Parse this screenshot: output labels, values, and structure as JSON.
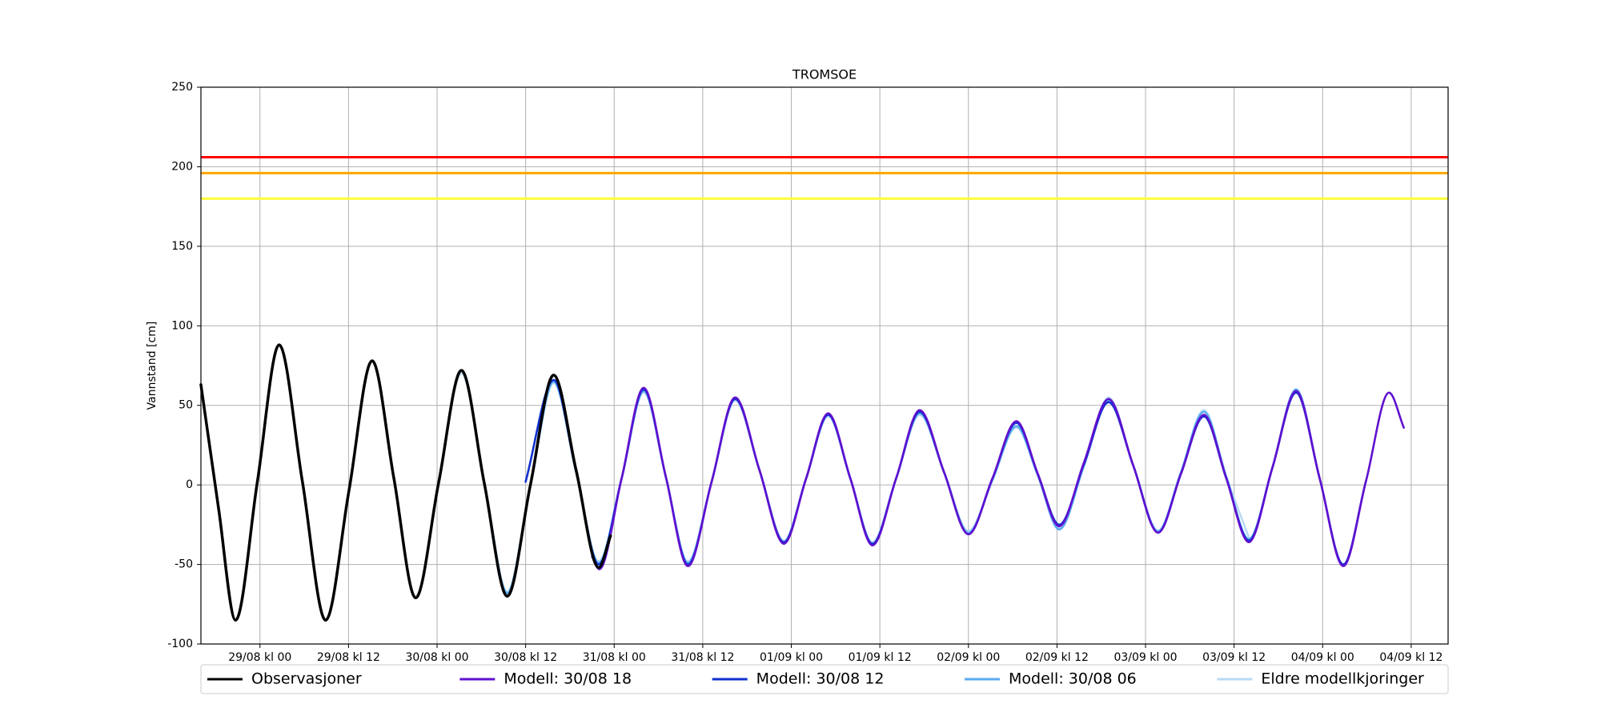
{
  "chart_data": {
    "type": "line",
    "title": "TROMSOE",
    "y_label": "Vannstand [cm]",
    "xlim": [
      -8,
      161
    ],
    "xticks": [
      {
        "value": 0,
        "label": "29/08 kl 00"
      },
      {
        "value": 12,
        "label": "29/08 kl 12"
      },
      {
        "value": 24,
        "label": "30/08 kl 00"
      },
      {
        "value": 36,
        "label": "30/08 kl 12"
      },
      {
        "value": 48,
        "label": "31/08 kl 00"
      },
      {
        "value": 60,
        "label": "31/08 kl 12"
      },
      {
        "value": 72,
        "label": "01/09 kl 00"
      },
      {
        "value": 84,
        "label": "01/09 kl 12"
      },
      {
        "value": 96,
        "label": "02/09 kl 00"
      },
      {
        "value": 108,
        "label": "02/09 kl 12"
      },
      {
        "value": 120,
        "label": "03/09 kl 00"
      },
      {
        "value": 132,
        "label": "03/09 kl 12"
      },
      {
        "value": 144,
        "label": "04/09 kl 00"
      },
      {
        "value": 156,
        "label": "04/09 kl 12"
      }
    ],
    "ylim": [
      -100,
      250
    ],
    "yticks": [
      -100,
      -50,
      0,
      50,
      100,
      150,
      200,
      250
    ],
    "grid": true,
    "legend": "bottom",
    "thresholds": [
      {
        "value": 206,
        "color": "#ff0000"
      },
      {
        "value": 196,
        "color": "#ffa500"
      },
      {
        "value": 180,
        "color": "#ffff33"
      }
    ],
    "series": [
      {
        "name": "Observasjoner",
        "color": "#000000",
        "x": [
          -8,
          -5.6,
          -3.3,
          -0.35,
          2.6,
          5.75,
          8.9,
          12.05,
          15.2,
          18.15,
          21.1,
          24.2,
          27.3,
          30.4,
          33.5,
          36.65,
          39.8,
          42.85,
          45.9,
          47.5
        ],
        "values": [
          63,
          -15,
          -85,
          2,
          88,
          2,
          -85,
          -4,
          78,
          4,
          -71,
          1,
          72,
          1,
          -70,
          0,
          69,
          9,
          -52,
          -32
        ]
      },
      {
        "name": "Modell: 30/08 18",
        "color": "#6010d0",
        "x": [
          45,
          46,
          49,
          52,
          55,
          58,
          61.2,
          64.4,
          67.7,
          71,
          74,
          77,
          80,
          83,
          86.2,
          89.4,
          92.7,
          96,
          99.25,
          102.5,
          105.4,
          108.3,
          111.65,
          115,
          118.35,
          121.7,
          124.8,
          127.9,
          130.95,
          134,
          137.2,
          140.4,
          143.6,
          146.8,
          149.9,
          153,
          155
        ],
        "values": [
          -45,
          -53,
          4,
          61,
          5,
          -51,
          2,
          55,
          9,
          -37,
          4,
          45,
          4,
          -38,
          4,
          47,
          8,
          -31,
          4,
          40,
          7,
          -26,
          14,
          54,
          12,
          -30,
          7,
          44,
          4,
          -36,
          11,
          59,
          4,
          -51,
          3,
          58,
          36
        ]
      },
      {
        "name": "Modell: 30/08 12",
        "color": "#1030d0",
        "x": [
          36,
          39.8,
          42.85,
          45.9,
          49,
          52,
          55,
          58,
          61.2,
          64.4,
          67.7,
          71,
          74,
          77,
          80,
          83,
          86.2,
          89.4,
          92.7,
          96,
          99.25,
          102.5,
          105.4,
          108.3,
          111.65,
          115,
          118.35,
          121.7,
          124.8,
          127.9,
          130.95,
          134,
          137.2,
          140.4,
          143.6,
          146.8,
          149.9
        ],
        "values": [
          2,
          66,
          8,
          -50,
          4,
          60,
          5,
          -50,
          2,
          54,
          9,
          -36,
          4,
          44,
          4,
          -37,
          4,
          46,
          8,
          -31,
          4,
          39,
          7,
          -25,
          13,
          52,
          12,
          -30,
          7,
          43,
          4,
          -35,
          11,
          58,
          4,
          -50,
          3
        ]
      },
      {
        "name": "Modell: 30/08 06",
        "color": "#5aaaf0",
        "x": [
          30.4,
          33.5,
          36.65,
          39.8,
          42.85,
          45.9,
          49,
          52,
          55,
          58,
          61.2,
          64.4,
          67.7,
          71,
          74,
          77,
          80,
          83,
          86.2,
          89.4,
          92.7,
          96,
          99.25,
          102.5,
          105.4,
          108.3,
          111.65,
          115,
          118.35,
          121.7,
          124.8,
          127.9,
          130.95,
          134,
          137.2,
          140.4,
          143.6
        ],
        "values": [
          2,
          -68,
          0,
          65,
          8,
          -49,
          4,
          59,
          5,
          -49,
          2,
          54,
          9,
          -36,
          4,
          44,
          4,
          -37,
          4,
          45,
          8,
          -30,
          3,
          37,
          6,
          -28,
          12,
          53,
          12,
          -29,
          8,
          46,
          5,
          -34,
          11,
          60,
          4
        ]
      },
      {
        "name": "Eldre modellkjoringer",
        "color": "#b8daf5",
        "x": [
          24.2,
          27.3,
          30.4,
          33.5,
          36.65,
          39.8,
          42.85,
          45.9,
          49,
          52,
          55,
          58,
          61.2,
          64.4,
          67.7,
          71,
          74,
          77,
          80,
          83,
          86.2,
          89.4,
          92.7,
          96,
          99.25,
          102.5,
          105.4,
          108.3,
          111.65,
          115,
          118.35,
          121.7,
          124.8,
          127.9,
          130.95,
          134
        ],
        "values": [
          1,
          70,
          2,
          -67,
          0,
          64,
          8,
          -48,
          4,
          58,
          5,
          -48,
          2,
          53,
          9,
          -35,
          4,
          43,
          4,
          -36,
          4,
          44,
          8,
          -29,
          3,
          36,
          6,
          -27,
          12,
          55,
          12,
          -29,
          8,
          47,
          5,
          -33
        ]
      }
    ]
  }
}
